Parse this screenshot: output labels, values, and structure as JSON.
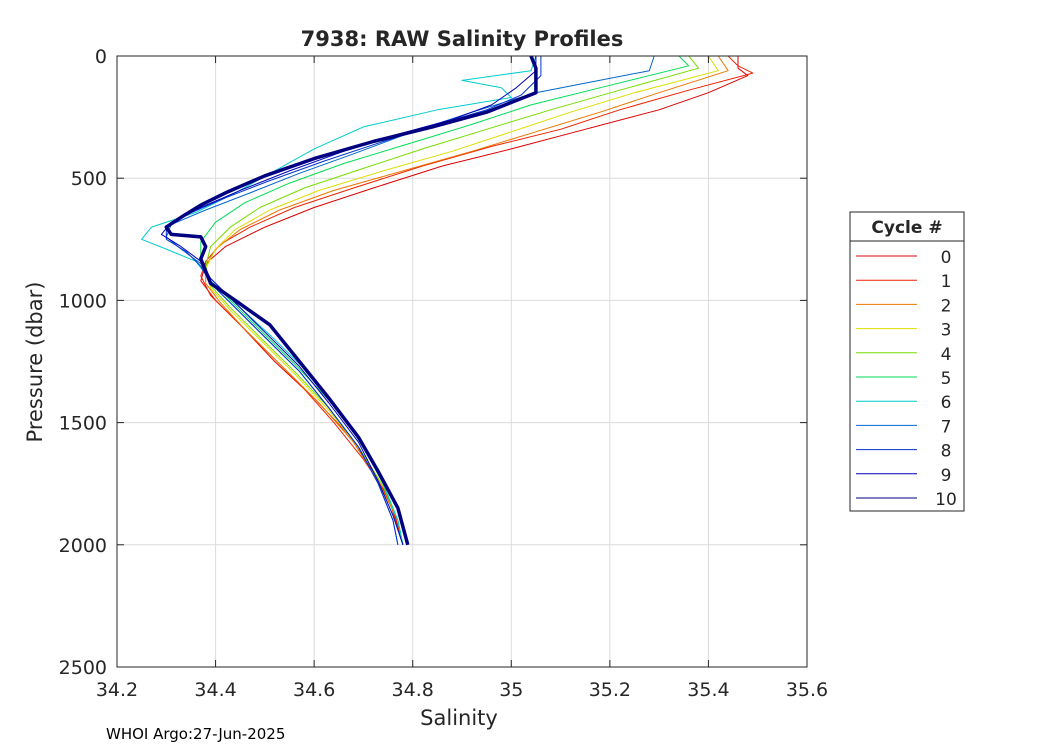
{
  "chart_data": {
    "type": "line",
    "title": "7938: RAW Salinity Profiles",
    "xlabel": "Salinity",
    "ylabel": "Pressure (dbar)",
    "xlim": [
      34.2,
      35.6
    ],
    "ylim": [
      0,
      2500
    ],
    "y_reversed": true,
    "grid": true,
    "x_ticks": [
      "34.2",
      "34.4",
      "34.6",
      "34.8",
      "35",
      "35.2",
      "35.4",
      "35.6"
    ],
    "y_ticks": [
      "0",
      "500",
      "1000",
      "1500",
      "2000",
      "2500"
    ],
    "legend": {
      "title": "Cycle #",
      "position": "right"
    },
    "series": [
      {
        "name": "0",
        "color": "#dd0000",
        "points": [
          [
            35.46,
            0
          ],
          [
            35.46,
            50
          ],
          [
            35.48,
            80
          ],
          [
            35.4,
            150
          ],
          [
            35.3,
            220
          ],
          [
            35.15,
            300
          ],
          [
            35.0,
            380
          ],
          [
            34.86,
            450
          ],
          [
            34.72,
            540
          ],
          [
            34.6,
            620
          ],
          [
            34.5,
            700
          ],
          [
            34.42,
            780
          ],
          [
            34.38,
            850
          ],
          [
            34.37,
            920
          ],
          [
            34.4,
            1000
          ],
          [
            34.45,
            1100
          ],
          [
            34.52,
            1250
          ],
          [
            34.6,
            1400
          ],
          [
            34.67,
            1550
          ],
          [
            34.72,
            1700
          ],
          [
            34.76,
            1850
          ],
          [
            34.78,
            2000
          ]
        ]
      },
      {
        "name": "1",
        "color": "#ee2200",
        "points": [
          [
            35.44,
            0
          ],
          [
            35.46,
            40
          ],
          [
            35.49,
            70
          ],
          [
            35.36,
            140
          ],
          [
            35.22,
            220
          ],
          [
            35.1,
            300
          ],
          [
            34.96,
            370
          ],
          [
            34.82,
            450
          ],
          [
            34.68,
            540
          ],
          [
            34.56,
            620
          ],
          [
            34.47,
            700
          ],
          [
            34.41,
            770
          ],
          [
            34.38,
            840
          ],
          [
            34.37,
            900
          ],
          [
            34.39,
            980
          ],
          [
            34.44,
            1080
          ],
          [
            34.5,
            1200
          ],
          [
            34.57,
            1340
          ],
          [
            34.64,
            1500
          ],
          [
            34.7,
            1650
          ],
          [
            34.75,
            1800
          ],
          [
            34.78,
            2000
          ]
        ]
      },
      {
        "name": "2",
        "color": "#ee7700",
        "points": [
          [
            35.42,
            0
          ],
          [
            35.44,
            60
          ],
          [
            35.3,
            150
          ],
          [
            35.18,
            230
          ],
          [
            35.05,
            310
          ],
          [
            34.92,
            390
          ],
          [
            34.78,
            470
          ],
          [
            34.64,
            550
          ],
          [
            34.53,
            630
          ],
          [
            34.45,
            710
          ],
          [
            34.4,
            790
          ],
          [
            34.38,
            860
          ],
          [
            34.38,
            930
          ],
          [
            34.41,
            1010
          ],
          [
            34.46,
            1120
          ],
          [
            34.53,
            1260
          ],
          [
            34.61,
            1420
          ],
          [
            34.68,
            1580
          ],
          [
            34.73,
            1740
          ],
          [
            34.77,
            1900
          ],
          [
            34.78,
            2000
          ]
        ]
      },
      {
        "name": "3",
        "color": "#dddd00",
        "points": [
          [
            35.4,
            0
          ],
          [
            35.42,
            60
          ],
          [
            35.25,
            150
          ],
          [
            35.12,
            230
          ],
          [
            35.0,
            310
          ],
          [
            34.88,
            390
          ],
          [
            34.74,
            470
          ],
          [
            34.61,
            550
          ],
          [
            34.51,
            630
          ],
          [
            34.44,
            710
          ],
          [
            34.4,
            790
          ],
          [
            34.38,
            870
          ],
          [
            34.39,
            950
          ],
          [
            34.43,
            1040
          ],
          [
            34.49,
            1160
          ],
          [
            34.56,
            1300
          ],
          [
            34.63,
            1450
          ],
          [
            34.69,
            1600
          ],
          [
            34.74,
            1760
          ],
          [
            34.77,
            1900
          ],
          [
            34.78,
            2000
          ]
        ]
      },
      {
        "name": "4",
        "color": "#77dd00",
        "points": [
          [
            35.36,
            0
          ],
          [
            35.38,
            50
          ],
          [
            35.22,
            140
          ],
          [
            35.08,
            220
          ],
          [
            34.95,
            300
          ],
          [
            34.82,
            380
          ],
          [
            34.7,
            460
          ],
          [
            34.58,
            540
          ],
          [
            34.49,
            620
          ],
          [
            34.43,
            700
          ],
          [
            34.39,
            780
          ],
          [
            34.38,
            860
          ],
          [
            34.39,
            940
          ],
          [
            34.43,
            1030
          ],
          [
            34.49,
            1150
          ],
          [
            34.56,
            1290
          ],
          [
            34.63,
            1440
          ],
          [
            34.69,
            1600
          ],
          [
            34.74,
            1760
          ],
          [
            34.77,
            1900
          ],
          [
            34.78,
            2000
          ]
        ]
      },
      {
        "name": "5",
        "color": "#00dd55",
        "points": [
          [
            35.34,
            0
          ],
          [
            35.36,
            40
          ],
          [
            35.2,
            120
          ],
          [
            35.04,
            200
          ],
          [
            34.92,
            280
          ],
          [
            34.79,
            360
          ],
          [
            34.66,
            440
          ],
          [
            34.55,
            520
          ],
          [
            34.46,
            600
          ],
          [
            34.4,
            680
          ],
          [
            34.37,
            760
          ],
          [
            34.37,
            840
          ],
          [
            34.39,
            920
          ],
          [
            34.44,
            1020
          ],
          [
            34.5,
            1140
          ],
          [
            34.57,
            1280
          ],
          [
            34.64,
            1430
          ],
          [
            34.7,
            1590
          ],
          [
            34.74,
            1750
          ],
          [
            34.77,
            1900
          ],
          [
            34.78,
            2000
          ]
        ]
      },
      {
        "name": "6",
        "color": "#00cccc",
        "points": [
          [
            35.05,
            0
          ],
          [
            35.04,
            60
          ],
          [
            34.9,
            100
          ],
          [
            34.98,
            130
          ],
          [
            35.0,
            170
          ],
          [
            34.85,
            220
          ],
          [
            34.7,
            290
          ],
          [
            34.6,
            380
          ],
          [
            34.52,
            470
          ],
          [
            34.44,
            560
          ],
          [
            34.36,
            640
          ],
          [
            34.27,
            700
          ],
          [
            34.25,
            750
          ],
          [
            34.3,
            790
          ],
          [
            34.36,
            840
          ],
          [
            34.39,
            920
          ],
          [
            34.45,
            1030
          ],
          [
            34.52,
            1160
          ],
          [
            34.59,
            1300
          ],
          [
            34.65,
            1450
          ],
          [
            34.7,
            1600
          ],
          [
            34.74,
            1750
          ],
          [
            34.77,
            1900
          ],
          [
            34.78,
            2000
          ]
        ]
      },
      {
        "name": "7",
        "color": "#0066cc",
        "points": [
          [
            35.29,
            0
          ],
          [
            35.28,
            60
          ],
          [
            35.05,
            150
          ],
          [
            34.92,
            230
          ],
          [
            34.8,
            310
          ],
          [
            34.68,
            400
          ],
          [
            34.57,
            480
          ],
          [
            34.47,
            560
          ],
          [
            34.38,
            630
          ],
          [
            34.31,
            690
          ],
          [
            34.3,
            740
          ],
          [
            34.33,
            790
          ],
          [
            34.37,
            850
          ],
          [
            34.39,
            930
          ],
          [
            34.44,
            1030
          ],
          [
            34.5,
            1150
          ],
          [
            34.57,
            1290
          ],
          [
            34.63,
            1440
          ],
          [
            34.69,
            1600
          ],
          [
            34.73,
            1750
          ],
          [
            34.76,
            1900
          ],
          [
            34.77,
            2000
          ]
        ]
      },
      {
        "name": "8",
        "color": "#0033cc",
        "points": [
          [
            35.06,
            0
          ],
          [
            35.06,
            80
          ],
          [
            35.02,
            160
          ],
          [
            34.95,
            220
          ],
          [
            34.85,
            280
          ],
          [
            34.74,
            350
          ],
          [
            34.62,
            430
          ],
          [
            34.51,
            510
          ],
          [
            34.42,
            580
          ],
          [
            34.34,
            650
          ],
          [
            34.3,
            700
          ],
          [
            34.3,
            750
          ],
          [
            34.34,
            800
          ],
          [
            34.37,
            860
          ],
          [
            34.39,
            930
          ],
          [
            34.44,
            1030
          ],
          [
            34.5,
            1150
          ],
          [
            34.57,
            1290
          ],
          [
            34.63,
            1440
          ],
          [
            34.69,
            1600
          ],
          [
            34.73,
            1750
          ],
          [
            34.76,
            1900
          ],
          [
            34.77,
            2000
          ]
        ]
      },
      {
        "name": "9",
        "color": "#0000bb",
        "points": [
          [
            35.05,
            0
          ],
          [
            35.05,
            60
          ],
          [
            35.01,
            130
          ],
          [
            34.96,
            200
          ],
          [
            34.88,
            260
          ],
          [
            34.77,
            320
          ],
          [
            34.66,
            390
          ],
          [
            34.55,
            470
          ],
          [
            34.45,
            550
          ],
          [
            34.37,
            620
          ],
          [
            34.31,
            680
          ],
          [
            34.29,
            730
          ],
          [
            34.33,
            780
          ],
          [
            34.37,
            840
          ],
          [
            34.39,
            910
          ],
          [
            34.44,
            1010
          ],
          [
            34.5,
            1130
          ],
          [
            34.57,
            1270
          ],
          [
            34.63,
            1420
          ],
          [
            34.69,
            1580
          ],
          [
            34.73,
            1740
          ],
          [
            34.76,
            1880
          ],
          [
            34.78,
            2000
          ]
        ]
      },
      {
        "name": "10",
        "color": "#000080",
        "thick": true,
        "points": [
          [
            35.04,
            0
          ],
          [
            35.05,
            50
          ],
          [
            35.05,
            150
          ],
          [
            34.95,
            230
          ],
          [
            34.84,
            290
          ],
          [
            34.72,
            350
          ],
          [
            34.6,
            420
          ],
          [
            34.5,
            490
          ],
          [
            34.42,
            560
          ],
          [
            34.37,
            610
          ],
          [
            34.33,
            660
          ],
          [
            34.3,
            700
          ],
          [
            34.31,
            730
          ],
          [
            34.37,
            740
          ],
          [
            34.38,
            780
          ],
          [
            34.37,
            830
          ],
          [
            34.38,
            880
          ],
          [
            34.39,
            930
          ],
          [
            34.44,
            1000
          ],
          [
            34.51,
            1100
          ],
          [
            34.57,
            1250
          ],
          [
            34.63,
            1400
          ],
          [
            34.69,
            1560
          ],
          [
            34.73,
            1700
          ],
          [
            34.77,
            1850
          ],
          [
            34.79,
            2000
          ]
        ]
      }
    ]
  },
  "footer": {
    "text": "WHOI Argo:27-Jun-2025"
  }
}
